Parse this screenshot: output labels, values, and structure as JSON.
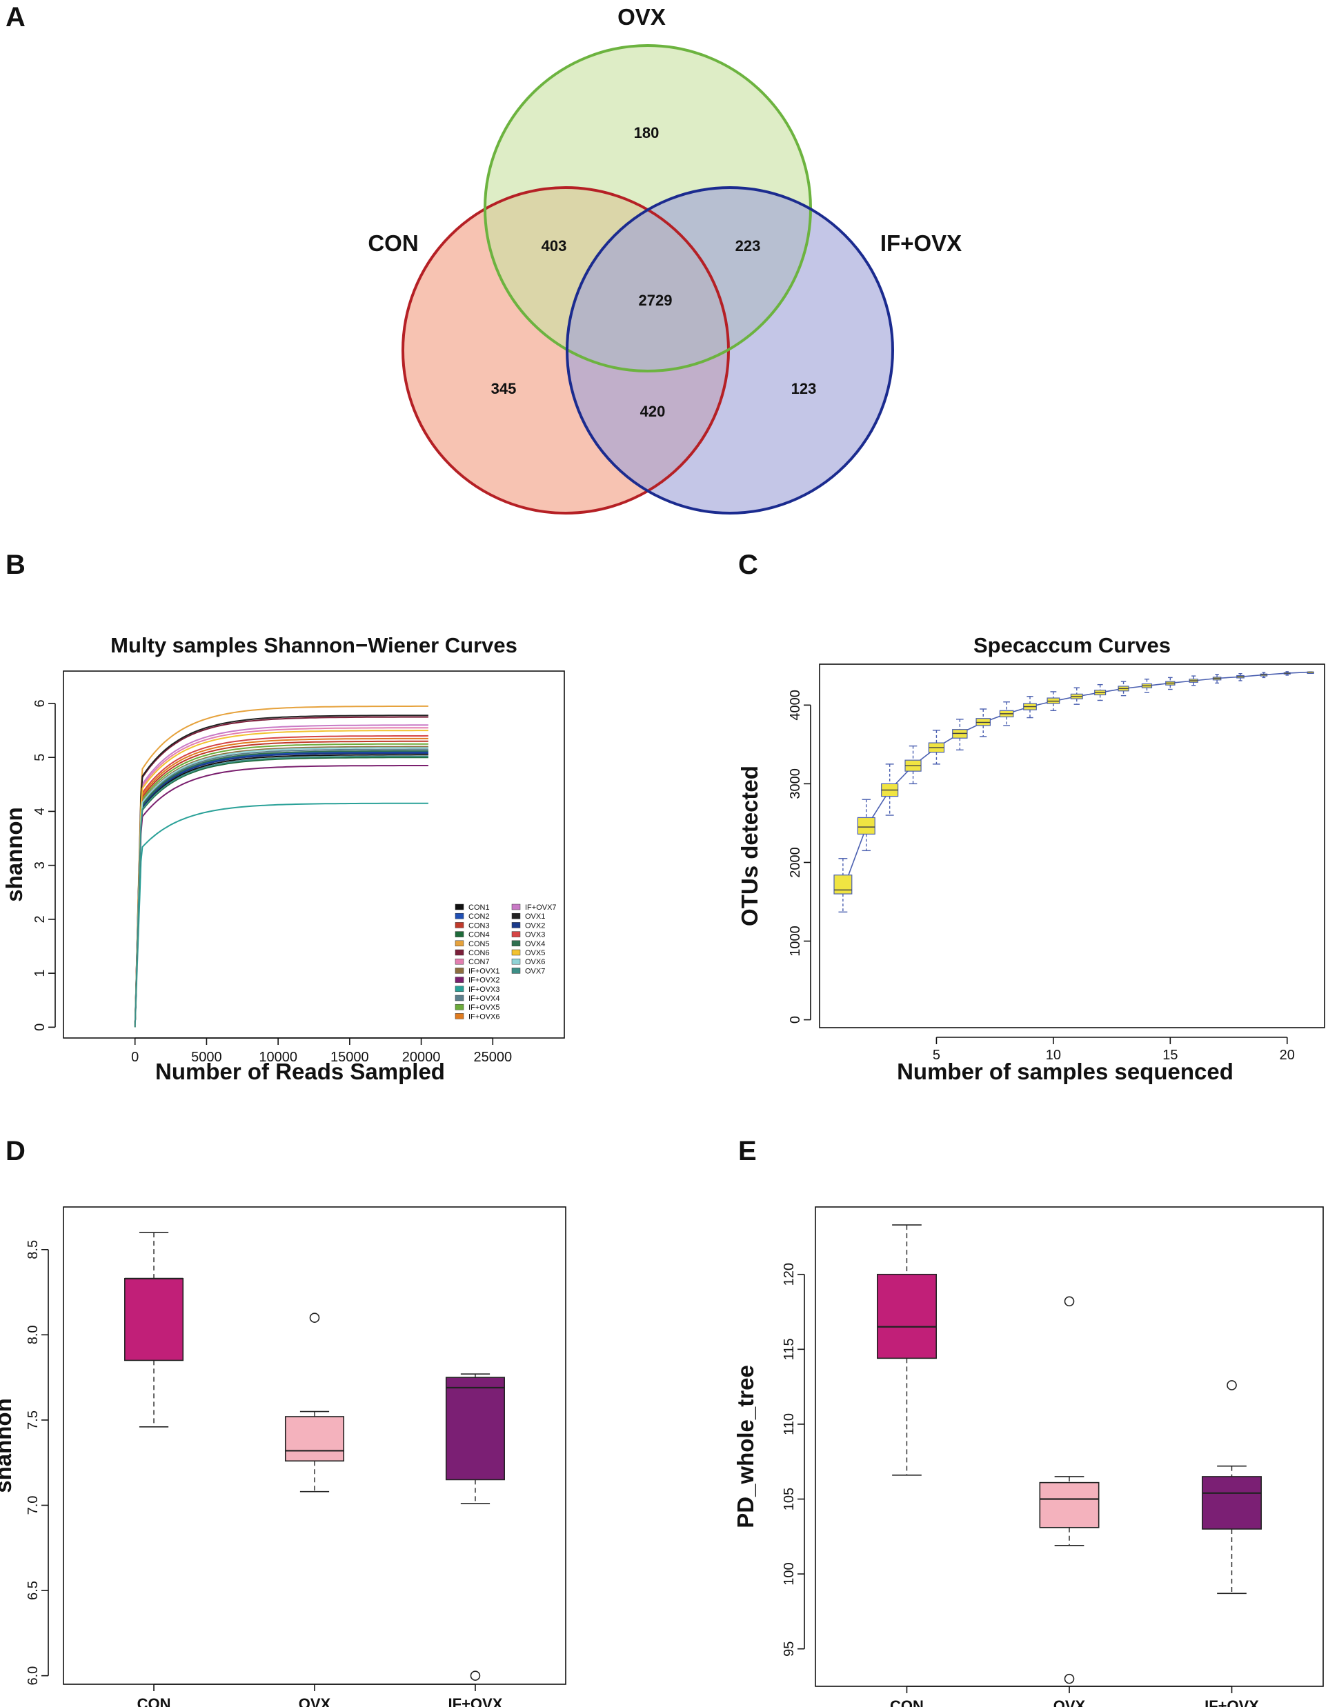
{
  "panels": {
    "A": "A",
    "B": "B",
    "C": "C",
    "D": "D",
    "E": "E"
  },
  "venn": {
    "sets": [
      {
        "name": "OVX",
        "color": "#6cb33f",
        "fill": "#c9e2a3"
      },
      {
        "name": "CON",
        "color": "#b52025",
        "fill": "#f29e82"
      },
      {
        "name": "IF+OVX",
        "color": "#1b2b8f",
        "fill": "#9fa3d8"
      }
    ],
    "regions": {
      "ovx_only": "180",
      "con_ovx": "403",
      "ovx_ifovx": "223",
      "all": "2729",
      "con_only": "345",
      "con_ifovx": "420",
      "ifovx_only": "123"
    }
  },
  "chart_data": [
    {
      "id": "B",
      "type": "line",
      "title": "Multy samples Shannon−Wiener Curves",
      "xlabel": "Number of Reads Sampled",
      "ylabel": "shannon",
      "xlim": [
        -5000,
        30000
      ],
      "ylim": [
        -0.2,
        6.6
      ],
      "xticks": [
        "0",
        "5000",
        "10000",
        "15000",
        "20000",
        "25000"
      ],
      "xtick_values": [
        0,
        5000,
        10000,
        15000,
        20000,
        25000
      ],
      "yticks": [
        "0",
        "1",
        "2",
        "3",
        "4",
        "5",
        "6"
      ],
      "ytick_values": [
        0,
        1,
        2,
        3,
        4,
        5,
        6
      ],
      "x_max_reads": 20500,
      "series": [
        {
          "name": "CON1",
          "color": "#111111",
          "plateau": 5.05
        },
        {
          "name": "CON2",
          "color": "#1f4fb4",
          "plateau": 5.1
        },
        {
          "name": "CON3",
          "color": "#c0392b",
          "plateau": 5.3
        },
        {
          "name": "CON4",
          "color": "#1e6b3a",
          "plateau": 5.0
        },
        {
          "name": "CON5",
          "color": "#e6a23c",
          "plateau": 5.95
        },
        {
          "name": "CON6",
          "color": "#7b1f3a",
          "plateau": 5.75
        },
        {
          "name": "CON7",
          "color": "#e37fb0",
          "plateau": 5.55
        },
        {
          "name": "IF+OVX1",
          "color": "#8d6e3f",
          "plateau": 5.2
        },
        {
          "name": "IF+OVX2",
          "color": "#7a1f6e",
          "plateau": 4.85
        },
        {
          "name": "IF+OVX3",
          "color": "#2aa198",
          "plateau": 4.15
        },
        {
          "name": "IF+OVX4",
          "color": "#5b7f8c",
          "plateau": 5.15
        },
        {
          "name": "IF+OVX5",
          "color": "#6cab3a",
          "plateau": 5.25
        },
        {
          "name": "IF+OVX6",
          "color": "#e07b1f",
          "plateau": 5.35
        },
        {
          "name": "IF+OVX7",
          "color": "#c979c6",
          "plateau": 5.6
        },
        {
          "name": "OVX1",
          "color": "#222222",
          "plateau": 5.78
        },
        {
          "name": "OVX2",
          "color": "#1b3a8a",
          "plateau": 5.08
        },
        {
          "name": "OVX3",
          "color": "#d64545",
          "plateau": 5.4
        },
        {
          "name": "OVX4",
          "color": "#2f6f4f",
          "plateau": 5.12
        },
        {
          "name": "OVX5",
          "color": "#f2c230",
          "plateau": 5.5
        },
        {
          "name": "OVX6",
          "color": "#8fd3d6",
          "plateau": 5.18
        },
        {
          "name": "OVX7",
          "color": "#3d8f87",
          "plateau": 5.02
        }
      ]
    },
    {
      "id": "C",
      "type": "box",
      "title": "Specaccum Curves",
      "xlabel": "Number of samples sequenced",
      "ylabel": "OTUs detected",
      "xlim": [
        0,
        21.6
      ],
      "ylim": [
        -100,
        4520
      ],
      "xticks": [
        "5",
        "10",
        "15",
        "20"
      ],
      "xtick_values": [
        5,
        10,
        15,
        20
      ],
      "yticks": [
        "0",
        "1000",
        "2000",
        "3000",
        "4000"
      ],
      "ytick_values": [
        0,
        1000,
        2000,
        3000,
        4000
      ],
      "box_fill": "#f0e442",
      "line_color": "#4a5fb0",
      "boxes": [
        {
          "x": 1,
          "lo": 1370,
          "q1": 1600,
          "med": 1650,
          "q3": 1840,
          "hi": 2050
        },
        {
          "x": 2,
          "lo": 2150,
          "q1": 2360,
          "med": 2450,
          "q3": 2570,
          "hi": 2800
        },
        {
          "x": 3,
          "lo": 2600,
          "q1": 2840,
          "med": 2920,
          "q3": 3000,
          "hi": 3250
        },
        {
          "x": 4,
          "lo": 3000,
          "q1": 3160,
          "med": 3230,
          "q3": 3300,
          "hi": 3480
        },
        {
          "x": 5,
          "lo": 3250,
          "q1": 3400,
          "med": 3460,
          "q3": 3520,
          "hi": 3680
        },
        {
          "x": 6,
          "lo": 3430,
          "q1": 3580,
          "med": 3640,
          "q3": 3690,
          "hi": 3820
        },
        {
          "x": 7,
          "lo": 3600,
          "q1": 3740,
          "med": 3780,
          "q3": 3830,
          "hi": 3950
        },
        {
          "x": 8,
          "lo": 3740,
          "q1": 3850,
          "med": 3890,
          "q3": 3930,
          "hi": 4040
        },
        {
          "x": 9,
          "lo": 3840,
          "q1": 3940,
          "med": 3980,
          "q3": 4020,
          "hi": 4110
        },
        {
          "x": 10,
          "lo": 3930,
          "q1": 4020,
          "med": 4050,
          "q3": 4090,
          "hi": 4170
        },
        {
          "x": 11,
          "lo": 4010,
          "q1": 4080,
          "med": 4110,
          "q3": 4140,
          "hi": 4220
        },
        {
          "x": 12,
          "lo": 4060,
          "q1": 4130,
          "med": 4160,
          "q3": 4190,
          "hi": 4260
        },
        {
          "x": 13,
          "lo": 4120,
          "q1": 4180,
          "med": 4210,
          "q3": 4240,
          "hi": 4300
        },
        {
          "x": 14,
          "lo": 4160,
          "q1": 4220,
          "med": 4245,
          "q3": 4270,
          "hi": 4330
        },
        {
          "x": 15,
          "lo": 4200,
          "q1": 4255,
          "med": 4280,
          "q3": 4300,
          "hi": 4350
        },
        {
          "x": 16,
          "lo": 4250,
          "q1": 4290,
          "med": 4310,
          "q3": 4330,
          "hi": 4370
        },
        {
          "x": 17,
          "lo": 4280,
          "q1": 4320,
          "med": 4340,
          "q3": 4355,
          "hi": 4390
        },
        {
          "x": 18,
          "lo": 4310,
          "q1": 4345,
          "med": 4360,
          "q3": 4375,
          "hi": 4400
        },
        {
          "x": 19,
          "lo": 4350,
          "q1": 4370,
          "med": 4385,
          "q3": 4395,
          "hi": 4415
        },
        {
          "x": 20,
          "lo": 4380,
          "q1": 4395,
          "med": 4405,
          "q3": 4412,
          "hi": 4425
        },
        {
          "x": 21,
          "lo": 4420,
          "q1": 4420,
          "med": 4420,
          "q3": 4420,
          "hi": 4420
        }
      ]
    },
    {
      "id": "D",
      "type": "box",
      "title": "",
      "xlabel": "",
      "ylabel": "shannon",
      "ylim": [
        5.95,
        8.75
      ],
      "yticks": [
        "6.0",
        "6.5",
        "7.0",
        "7.5",
        "8.0",
        "8.5"
      ],
      "ytick_values": [
        6.0,
        6.5,
        7.0,
        7.5,
        8.0,
        8.5
      ],
      "categories": [
        "CON",
        "OVX",
        "IF+OVX"
      ],
      "boxes": [
        {
          "name": "CON",
          "color": "#c11f78",
          "lo": 7.46,
          "q1": 7.85,
          "med": 8.33,
          "q3": 8.33,
          "hi": 8.6,
          "outliers": []
        },
        {
          "name": "OVX",
          "color": "#f4b2bd",
          "lo": 7.08,
          "q1": 7.26,
          "med": 7.32,
          "q3": 7.52,
          "hi": 7.55,
          "outliers": [
            8.1
          ]
        },
        {
          "name": "IF+OVX",
          "color": "#7b1f74",
          "lo": 7.01,
          "q1": 7.15,
          "med": 7.69,
          "q3": 7.75,
          "hi": 7.77,
          "outliers": [
            6.0
          ]
        }
      ]
    },
    {
      "id": "E",
      "type": "box",
      "title": "",
      "xlabel": "",
      "ylabel": "PD_whole_tree",
      "ylim": [
        92.5,
        124.5
      ],
      "yticks": [
        "95",
        "100",
        "105",
        "110",
        "115",
        "120"
      ],
      "ytick_values": [
        95,
        100,
        105,
        110,
        115,
        120
      ],
      "categories": [
        "CON",
        "OVX",
        "IF+OVX"
      ],
      "boxes": [
        {
          "name": "CON",
          "color": "#c11f78",
          "lo": 106.6,
          "q1": 114.4,
          "med": 116.5,
          "q3": 120.0,
          "hi": 123.3,
          "outliers": []
        },
        {
          "name": "OVX",
          "color": "#f4b2bd",
          "lo": 101.9,
          "q1": 103.1,
          "med": 105.0,
          "q3": 106.1,
          "hi": 106.5,
          "outliers": [
            118.2,
            93.0
          ]
        },
        {
          "name": "IF+OVX",
          "color": "#7b1f74",
          "lo": 98.7,
          "q1": 103.0,
          "med": 105.4,
          "q3": 106.5,
          "hi": 107.2,
          "outliers": [
            112.6
          ]
        }
      ]
    }
  ]
}
